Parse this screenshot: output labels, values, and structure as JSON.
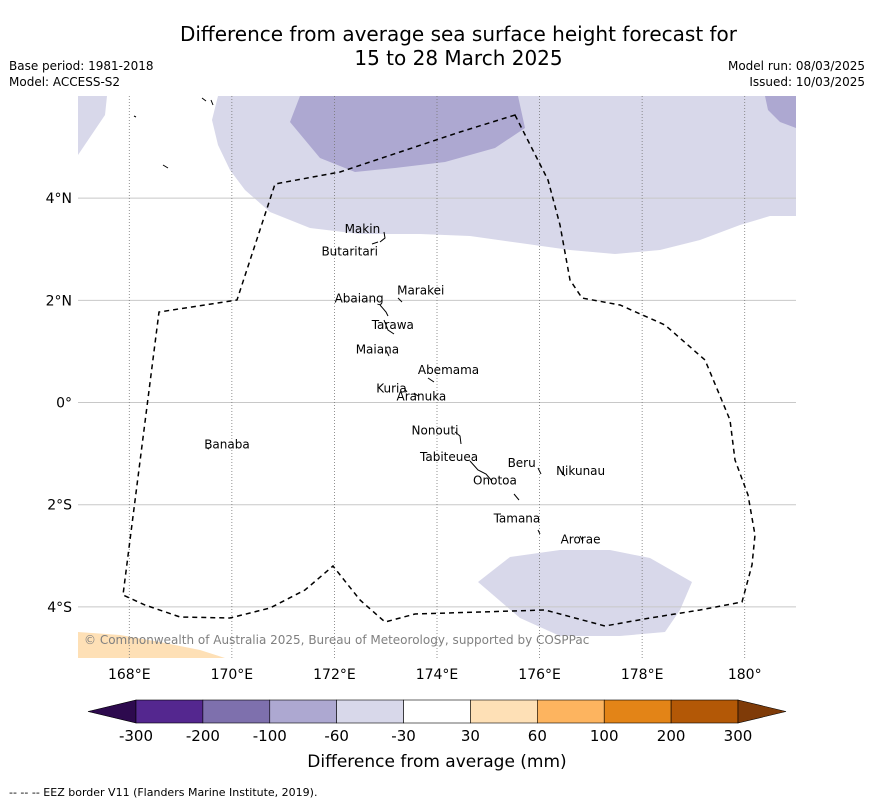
{
  "title_line1": "Difference from average sea surface height forecast for",
  "title_line2": "15 to 28 March 2025",
  "meta_left": [
    "Base period: 1981-2018",
    "Model: ACCESS-S2"
  ],
  "meta_right": [
    "Model run: 08/03/2025",
    "Issued: 10/03/2025"
  ],
  "map": {
    "lon_range": [
      167,
      181
    ],
    "lat_range": [
      -5,
      6
    ],
    "x_tick_labels": [
      "168°E",
      "170°E",
      "172°E",
      "174°E",
      "176°E",
      "178°E",
      "180°"
    ],
    "y_tick_labels": [
      "4°N",
      "2°N",
      "0°",
      "2°S",
      "4°S"
    ],
    "copyright": "© Commonwealth of Australia 2025, Bureau of Meteorology, supported by COSPPac",
    "places": [
      {
        "name": "Makin",
        "lon": 172.9,
        "lat": 3.2
      },
      {
        "name": "Butaritari",
        "lon": 172.8,
        "lat": 3.0
      },
      {
        "name": "Marakei",
        "lon": 173.3,
        "lat": 2.0
      },
      {
        "name": "Abaiang",
        "lon": 172.9,
        "lat": 1.8
      },
      {
        "name": "Tarawa",
        "lon": 173.0,
        "lat": 1.4
      },
      {
        "name": "Maiana",
        "lon": 173.0,
        "lat": 1.0
      },
      {
        "name": "Abemama",
        "lon": 173.9,
        "lat": 0.4
      },
      {
        "name": "Kuria",
        "lon": 173.4,
        "lat": 0.2
      },
      {
        "name": "Aranuka",
        "lon": 173.6,
        "lat": 0.2
      },
      {
        "name": "Nonouti",
        "lon": 174.4,
        "lat": -0.7
      },
      {
        "name": "Banaba",
        "lon": 169.5,
        "lat": -0.9
      },
      {
        "name": "Beru",
        "lon": 176.0,
        "lat": -1.3
      },
      {
        "name": "Nikunau",
        "lon": 176.4,
        "lat": -1.3
      },
      {
        "name": "Tabiteuea",
        "lon": 174.8,
        "lat": -1.3
      },
      {
        "name": "Onotoa",
        "lon": 175.6,
        "lat": -1.8
      },
      {
        "name": "Tamana",
        "lon": 176.0,
        "lat": -2.5
      },
      {
        "name": "Arorae",
        "lon": 176.8,
        "lat": -2.6
      }
    ]
  },
  "colorbar": {
    "label": "Difference from average (mm)",
    "ticks": [
      "-300",
      "-200",
      "-100",
      "-60",
      "-30",
      "30",
      "60",
      "100",
      "200",
      "300"
    ],
    "colors": [
      "#2d0a4e",
      "#54278f",
      "#7e70ad",
      "#ada8d1",
      "#d8d8ea",
      "#ffffff",
      "#fee0b6",
      "#fdb45f",
      "#e38417",
      "#b35806",
      "#7f3b08"
    ]
  },
  "footer": "--  --  -- EEZ border V11 (Flanders Marine Institute, 2019)."
}
